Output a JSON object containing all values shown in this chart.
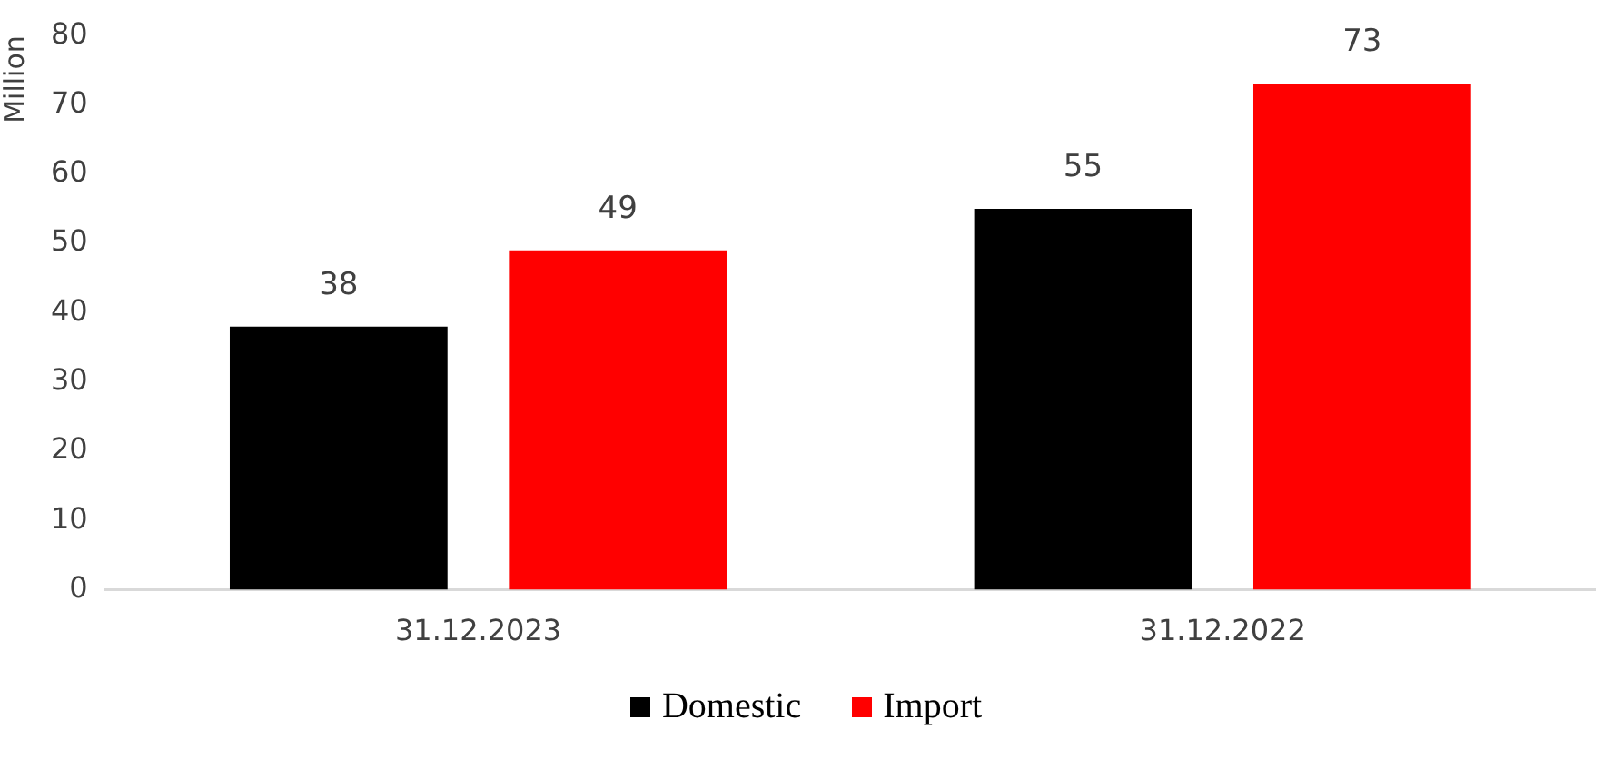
{
  "chart_data": {
    "type": "bar",
    "ylabel": "Million",
    "categories": [
      "31.12.2023",
      "31.12.2022"
    ],
    "series": [
      {
        "name": "Domestic",
        "color": "#000000",
        "values": [
          38,
          55
        ]
      },
      {
        "name": "Import",
        "color": "#ff0000",
        "values": [
          49,
          73
        ]
      }
    ],
    "ylim": [
      0,
      80
    ],
    "yticks": [
      0,
      10,
      20,
      30,
      40,
      50,
      60,
      70,
      80
    ],
    "grid": false,
    "legend": "bottom",
    "data_labels": true
  }
}
